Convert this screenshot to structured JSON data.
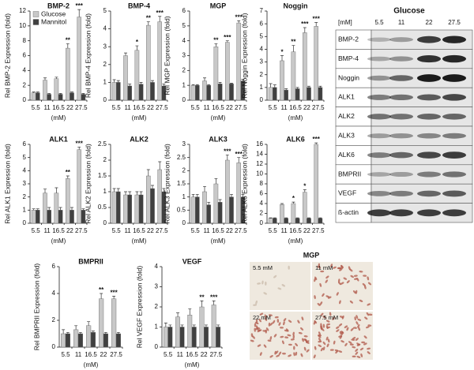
{
  "chart_data": [
    {
      "type": "bar",
      "title": "BMP-2",
      "y_label": "Rel BMP-2 Expression (fold)",
      "x_label": "(mM)",
      "categories": [
        "5.5",
        "11",
        "16.5",
        "22",
        "27.5"
      ],
      "ylim": [
        0,
        12
      ],
      "yticks": [
        0,
        2,
        4,
        6,
        8,
        10,
        12
      ],
      "legend": "upper left",
      "series": [
        {
          "name": "Glucose",
          "color": "#c8c8c8",
          "values": [
            1,
            2.7,
            2.9,
            7,
            11.2
          ],
          "errors": [
            0.1,
            0.3,
            0.2,
            0.6,
            1.0
          ],
          "annotations": [
            null,
            null,
            null,
            "**",
            "***"
          ]
        },
        {
          "name": "Mannitol",
          "color": "#404040",
          "values": [
            1,
            0.8,
            0.8,
            1,
            0.8
          ],
          "errors": [
            0.1,
            0.1,
            0.1,
            0.1,
            0.1
          ]
        }
      ]
    },
    {
      "type": "bar",
      "title": "BMP-4",
      "y_label": "Rel BMP-4 Expression (fold)",
      "x_label": "(mM)",
      "categories": [
        "5.5",
        "11",
        "16.5",
        "22",
        "27.5"
      ],
      "ylim": [
        0,
        5
      ],
      "yticks": [
        0,
        1,
        2,
        3,
        4,
        5
      ],
      "series": [
        {
          "color": "#c8c8c8",
          "values": [
            1,
            2.5,
            2.8,
            4.2,
            4.4
          ],
          "errors": [
            0.15,
            0.15,
            0.25,
            0.2,
            0.3
          ],
          "annotations": [
            null,
            null,
            "*",
            "**",
            "***"
          ]
        },
        {
          "color": "#404040",
          "values": [
            1,
            0.8,
            0.9,
            1.0,
            0.8
          ],
          "errors": [
            0.1,
            0.1,
            0.1,
            0.1,
            0.1
          ]
        }
      ]
    },
    {
      "type": "bar",
      "title": "MGP",
      "y_label": "Rel MGP Expression (fold)",
      "x_label": "(mM)",
      "categories": [
        "5.5",
        "11",
        "16.5",
        "22",
        "27.5"
      ],
      "ylim": [
        0,
        6
      ],
      "yticks": [
        0,
        1,
        2,
        3,
        4,
        5,
        6
      ],
      "series": [
        {
          "color": "#c8c8c8",
          "values": [
            1,
            1.3,
            3.6,
            3.9,
            5.2
          ],
          "errors": [
            0.05,
            0.2,
            0.2,
            0.1,
            0.15
          ],
          "annotations": [
            null,
            null,
            "**",
            "***",
            "***"
          ]
        },
        {
          "color": "#404040",
          "values": [
            1,
            1,
            1.1,
            1.1,
            1.3
          ],
          "errors": [
            0.05,
            0.05,
            0.1,
            0.05,
            0.1
          ]
        }
      ]
    },
    {
      "type": "bar",
      "title": "Noggin",
      "y_label": "Rel Noggin Expression (fold)",
      "x_label": "(mM)",
      "categories": [
        "5.5",
        "11",
        "16.5",
        "22",
        "27.5"
      ],
      "ylim": [
        0,
        7
      ],
      "yticks": [
        0,
        1,
        2,
        3,
        4,
        5,
        6,
        7
      ],
      "series": [
        {
          "color": "#c8c8c8",
          "values": [
            1,
            3.1,
            3.8,
            5.3,
            5.8
          ],
          "errors": [
            0.3,
            0.4,
            0.5,
            0.4,
            0.3
          ],
          "annotations": [
            null,
            "*",
            "**",
            "***",
            "***"
          ]
        },
        {
          "color": "#404040",
          "values": [
            1,
            0.8,
            0.9,
            1,
            1
          ],
          "errors": [
            0.2,
            0.1,
            0.1,
            0.1,
            0.1
          ]
        }
      ]
    },
    {
      "type": "bar",
      "title": "ALK1",
      "y_label": "Rel ALK1 Expression (fold)",
      "x_label": "(mM)",
      "categories": [
        "5.5",
        "11",
        "16.5",
        "22",
        "27.5"
      ],
      "ylim": [
        0,
        6
      ],
      "yticks": [
        0,
        1,
        2,
        3,
        4,
        5,
        6
      ],
      "series": [
        {
          "color": "#c8c8c8",
          "values": [
            1,
            2.3,
            2.3,
            3.4,
            5.6
          ],
          "errors": [
            0.1,
            0.3,
            0.4,
            0.2,
            0.2
          ],
          "annotations": [
            null,
            null,
            null,
            "**",
            "***"
          ]
        },
        {
          "color": "#404040",
          "values": [
            1,
            1,
            1,
            1,
            1
          ],
          "errors": [
            0.1,
            0.2,
            0.2,
            0.2,
            0.1
          ]
        }
      ]
    },
    {
      "type": "bar",
      "title": "ALK2",
      "y_label": "Rel ALK2 Expression (fold)",
      "x_label": "(mM)",
      "categories": [
        "5.5",
        "11",
        "16.5",
        "22",
        "27.5"
      ],
      "ylim": [
        0,
        2.5
      ],
      "yticks": [
        0,
        0.5,
        1,
        1.5,
        2,
        2.5
      ],
      "series": [
        {
          "color": "#c8c8c8",
          "values": [
            1,
            0.9,
            0.9,
            1.5,
            1.7
          ],
          "errors": [
            0.1,
            0.1,
            0.1,
            0.2,
            0.25
          ]
        },
        {
          "color": "#404040",
          "values": [
            1,
            0.9,
            0.9,
            1.1,
            1.0
          ],
          "errors": [
            0.1,
            0.1,
            0.1,
            0.1,
            0.1
          ]
        }
      ]
    },
    {
      "type": "bar",
      "title": "ALK3",
      "y_label": "Rel ALK3 Expression (fold)",
      "x_label": "(mM)",
      "categories": [
        "5.5",
        "11",
        "16.5",
        "22",
        "27.5"
      ],
      "ylim": [
        0,
        3
      ],
      "yticks": [
        0,
        0.5,
        1,
        1.5,
        2,
        2.5,
        3
      ],
      "series": [
        {
          "color": "#c8c8c8",
          "values": [
            1,
            1.2,
            1.5,
            2.4,
            2.3
          ],
          "errors": [
            0.1,
            0.2,
            0.2,
            0.2,
            0.2
          ],
          "annotations": [
            null,
            null,
            null,
            "***",
            "***"
          ]
        },
        {
          "color": "#404040",
          "values": [
            1,
            0.7,
            0.8,
            1.0,
            1.0
          ],
          "errors": [
            0.1,
            0.1,
            0.1,
            0.1,
            0.1
          ]
        }
      ]
    },
    {
      "type": "bar",
      "title": "ALK6",
      "y_label": "Rel ALK6 Expression (fold)",
      "x_label": "(mM)",
      "categories": [
        "5.5",
        "11",
        "16.5",
        "22",
        "27.5"
      ],
      "ylim": [
        0,
        16
      ],
      "yticks": [
        0,
        2,
        4,
        6,
        8,
        10,
        12,
        14,
        16
      ],
      "series": [
        {
          "color": "#c8c8c8",
          "values": [
            1,
            3.8,
            4,
            6.3,
            16
          ],
          "errors": [
            0.1,
            0.2,
            0.3,
            0.5,
            0.3
          ],
          "annotations": [
            null,
            null,
            "*",
            "*",
            "***"
          ]
        },
        {
          "color": "#404040",
          "values": [
            1,
            1,
            1,
            1,
            1
          ],
          "errors": [
            0.1,
            0.1,
            0.1,
            0.1,
            0.1
          ]
        }
      ]
    },
    {
      "type": "bar",
      "title": "BMPRII",
      "y_label": "Rel BMPRII Expression (fold)",
      "x_label": "(mM)",
      "categories": [
        "5.5",
        "11",
        "16.5",
        "22",
        "27.5"
      ],
      "ylim": [
        0,
        6
      ],
      "yticks": [
        0,
        2,
        4,
        6
      ],
      "series": [
        {
          "color": "#c8c8c8",
          "values": [
            1,
            1.3,
            1.6,
            3.6,
            3.6
          ],
          "errors": [
            0.3,
            0.3,
            0.3,
            0.4,
            0.2
          ],
          "annotations": [
            null,
            null,
            null,
            "**",
            "***"
          ]
        },
        {
          "color": "#404040",
          "values": [
            1,
            1,
            1.1,
            1,
            1
          ],
          "errors": [
            0.1,
            0.1,
            0.1,
            0.1,
            0.1
          ]
        }
      ]
    },
    {
      "type": "bar",
      "title": "VEGF",
      "y_label": "Rel VEGF Expression (fold)",
      "x_label": "(mM)",
      "categories": [
        "5.5",
        "11",
        "16.5",
        "22",
        "27.5"
      ],
      "ylim": [
        0,
        4
      ],
      "yticks": [
        0,
        1,
        2,
        3,
        4
      ],
      "series": [
        {
          "color": "#c8c8c8",
          "values": [
            1,
            1.5,
            1.6,
            2.0,
            2.1
          ],
          "errors": [
            0.2,
            0.2,
            0.3,
            0.3,
            0.2
          ],
          "annotations": [
            null,
            null,
            null,
            "**",
            "***"
          ]
        },
        {
          "color": "#404040",
          "values": [
            1,
            1,
            1,
            1,
            1
          ],
          "errors": [
            0.1,
            0.1,
            0.1,
            0.1,
            0.1
          ]
        }
      ]
    }
  ],
  "blot": {
    "title": "Glucose",
    "unit": "[mM]",
    "lanes": [
      "5.5",
      "11",
      "22",
      "27.5"
    ],
    "rows": [
      "BMP-2",
      "BMP-4",
      "Noggin",
      "ALK1",
      "ALK2",
      "ALK3",
      "ALK6",
      "BMPRII",
      "VEGF",
      "ß-actin"
    ]
  },
  "micrographs": {
    "title": "MGP",
    "panels": [
      "5.5 mM",
      "11 mM",
      "22 mM",
      "27.5 mM"
    ]
  }
}
